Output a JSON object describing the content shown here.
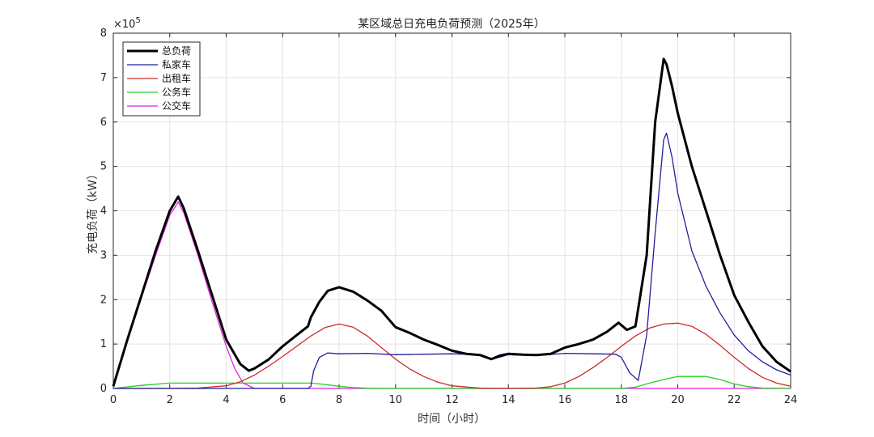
{
  "chart_data": {
    "type": "line",
    "title": "某区域总日充电负荷预测（2025年）",
    "xlabel": "时间（小时）",
    "ylabel": "充电负荷（kW）",
    "y_multiplier": "×10",
    "y_multiplier_exp": "5",
    "xlim": [
      0,
      24
    ],
    "ylim": [
      0,
      800000
    ],
    "xticks": [
      0,
      2,
      4,
      6,
      8,
      10,
      12,
      14,
      16,
      18,
      20,
      22,
      24
    ],
    "yticks": [
      0,
      100000,
      200000,
      300000,
      400000,
      500000,
      600000,
      700000,
      800000
    ],
    "ytick_labels": [
      "0",
      "1",
      "2",
      "3",
      "4",
      "5",
      "6",
      "7",
      "8"
    ],
    "grid": true,
    "legend_position": "top-left",
    "series": [
      {
        "name": "总负荷",
        "color": "#000000",
        "x": [
          0,
          0.5,
          1,
          1.5,
          2,
          2.3,
          2.5,
          3,
          3.5,
          4,
          4.5,
          4.8,
          5,
          5.5,
          6,
          6.5,
          6.9,
          7,
          7.3,
          7.6,
          8,
          8.5,
          9,
          9.5,
          10,
          10.5,
          11,
          11.5,
          12,
          12.5,
          13,
          13.4,
          13.7,
          14,
          14.5,
          15,
          15.5,
          16,
          16.5,
          17,
          17.5,
          17.9,
          18.2,
          18.5,
          18.9,
          19.2,
          19.5,
          19.6,
          19.8,
          20,
          20.5,
          21,
          21.5,
          22,
          22.5,
          23,
          23.5,
          24
        ],
        "values": [
          5000,
          110000,
          210000,
          310000,
          400000,
          432000,
          405000,
          310000,
          210000,
          110000,
          55000,
          40000,
          45000,
          65000,
          95000,
          120000,
          140000,
          160000,
          195000,
          220000,
          228000,
          218000,
          198000,
          175000,
          138000,
          125000,
          110000,
          98000,
          85000,
          78000,
          75000,
          66000,
          74000,
          78000,
          76000,
          75000,
          78000,
          92000,
          100000,
          110000,
          128000,
          148000,
          132000,
          140000,
          300000,
          600000,
          742000,
          730000,
          680000,
          620000,
          500000,
          400000,
          300000,
          210000,
          150000,
          95000,
          60000,
          38000
        ]
      },
      {
        "name": "私家车",
        "color": "#1f1f9e",
        "x": [
          0,
          6.9,
          7.0,
          7.1,
          7.3,
          7.6,
          8,
          9,
          10,
          11,
          12,
          12.5,
          13,
          13.4,
          14,
          15,
          16,
          17,
          17.8,
          18,
          18.3,
          18.6,
          18.9,
          19.2,
          19.5,
          19.6,
          19.8,
          20,
          20.5,
          21,
          21.5,
          22,
          22.5,
          23,
          23.5,
          24
        ],
        "values": [
          0,
          0,
          5000,
          40000,
          70000,
          80000,
          78000,
          79000,
          76000,
          77000,
          78000,
          77000,
          75000,
          65000,
          76000,
          74000,
          79000,
          78000,
          77000,
          70000,
          35000,
          18000,
          120000,
          350000,
          560000,
          575000,
          520000,
          440000,
          310000,
          230000,
          170000,
          120000,
          85000,
          60000,
          42000,
          30000
        ]
      },
      {
        "name": "出租车",
        "color": "#cc2a2a",
        "x": [
          0,
          2,
          3,
          4,
          4.5,
          5,
          5.5,
          6,
          6.5,
          7,
          7.5,
          8,
          8.5,
          9,
          9.5,
          10,
          10.5,
          11,
          11.5,
          12,
          13,
          14,
          15,
          15.5,
          16,
          16.5,
          17,
          17.5,
          18,
          18.5,
          19,
          19.5,
          20,
          20.5,
          21,
          21.5,
          22,
          22.5,
          23,
          23.5,
          24
        ],
        "values": [
          0,
          0,
          1000,
          6000,
          15000,
          30000,
          50000,
          72000,
          95000,
          118000,
          137000,
          145000,
          138000,
          118000,
          92000,
          66000,
          44000,
          27000,
          14000,
          6000,
          500,
          0,
          1000,
          4000,
          12000,
          27000,
          47000,
          70000,
          95000,
          118000,
          136000,
          145000,
          147000,
          140000,
          122000,
          97000,
          70000,
          45000,
          25000,
          12000,
          5000
        ]
      },
      {
        "name": "公务车",
        "color": "#22d022",
        "x": [
          0,
          1,
          2,
          3,
          4,
          5,
          6,
          7,
          7.5,
          8,
          8.5,
          9,
          9.5,
          10,
          12,
          14,
          16,
          18,
          18.5,
          19,
          19.5,
          20,
          21,
          21.5,
          22,
          22.5,
          23,
          24
        ],
        "values": [
          0,
          7000,
          12000,
          12000,
          12000,
          12000,
          12000,
          12000,
          9000,
          5000,
          2000,
          500,
          0,
          0,
          0,
          0,
          0,
          0,
          3000,
          12000,
          20000,
          27000,
          27000,
          20000,
          10000,
          4000,
          1000,
          0
        ]
      },
      {
        "name": "公交车",
        "color": "#e022e0",
        "x": [
          0,
          0.5,
          1,
          1.5,
          2,
          2.3,
          2.5,
          3,
          3.5,
          4,
          4.3,
          4.6,
          5,
          6,
          12,
          18,
          24
        ],
        "values": [
          5000,
          105000,
          205000,
          300000,
          390000,
          420000,
          395000,
          300000,
          195000,
          95000,
          45000,
          12000,
          0,
          0,
          0,
          0,
          0
        ]
      }
    ]
  }
}
